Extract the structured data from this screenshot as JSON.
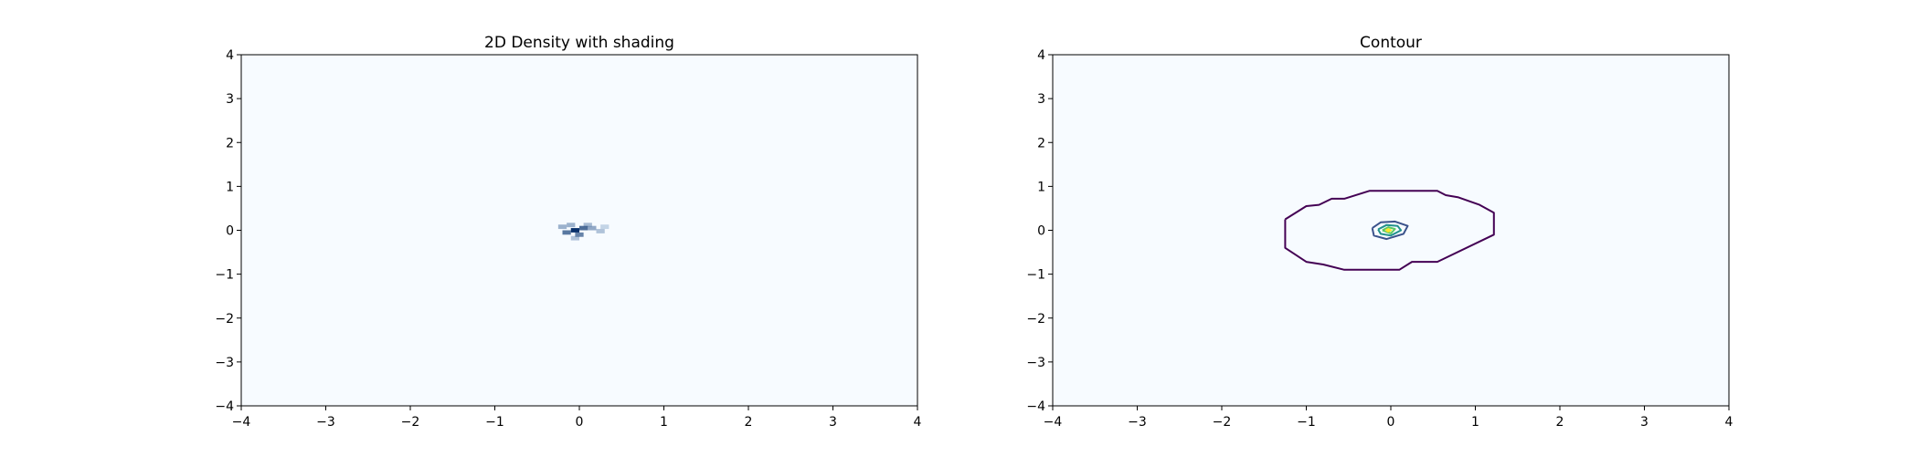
{
  "chart_data": [
    {
      "type": "heatmap",
      "title": "2D Density with shading",
      "xlabel": "",
      "ylabel": "",
      "xlim": [
        -4,
        4
      ],
      "ylim": [
        -4,
        4
      ],
      "xticks": [
        "−4",
        "−3",
        "−2",
        "−1",
        "0",
        "1",
        "2",
        "3",
        "4"
      ],
      "yticks": [
        "−4",
        "−3",
        "−2",
        "−1",
        "0",
        "1",
        "2",
        "3",
        "4"
      ],
      "grid": false,
      "colormap": "Blues",
      "background_color": "#f7fbff",
      "density_peak": {
        "x": -0.05,
        "y": 0.0
      },
      "density_cells": [
        {
          "x": -0.05,
          "y": 0.0,
          "level": 1.0
        },
        {
          "x": 0.05,
          "y": 0.05,
          "level": 0.75
        },
        {
          "x": -0.15,
          "y": -0.05,
          "level": 0.7
        },
        {
          "x": 0.0,
          "y": -0.1,
          "level": 0.65
        },
        {
          "x": 0.15,
          "y": 0.05,
          "level": 0.45
        },
        {
          "x": -0.2,
          "y": 0.08,
          "level": 0.4
        },
        {
          "x": 0.25,
          "y": -0.02,
          "level": 0.3
        },
        {
          "x": 0.1,
          "y": 0.12,
          "level": 0.35
        },
        {
          "x": -0.1,
          "y": 0.12,
          "level": 0.4
        },
        {
          "x": 0.3,
          "y": 0.08,
          "level": 0.18
        },
        {
          "x": -0.05,
          "y": -0.18,
          "level": 0.3
        }
      ]
    },
    {
      "type": "contour",
      "title": "Contour",
      "xlabel": "",
      "ylabel": "",
      "xlim": [
        -4,
        4
      ],
      "ylim": [
        -4,
        4
      ],
      "xticks": [
        "−4",
        "−3",
        "−2",
        "−1",
        "0",
        "1",
        "2",
        "3",
        "4"
      ],
      "yticks": [
        "−4",
        "−3",
        "−2",
        "−1",
        "0",
        "1",
        "2",
        "3",
        "4"
      ],
      "grid": false,
      "background_color": "#f7fbff",
      "contours": [
        {
          "level_color": "#440154",
          "points": [
            [
              -1.25,
              0.25
            ],
            [
              -1.0,
              0.55
            ],
            [
              -0.85,
              0.58
            ],
            [
              -0.7,
              0.72
            ],
            [
              -0.55,
              0.72
            ],
            [
              -0.25,
              0.9
            ],
            [
              0.55,
              0.9
            ],
            [
              0.65,
              0.8
            ],
            [
              0.8,
              0.75
            ],
            [
              1.05,
              0.58
            ],
            [
              1.22,
              0.4
            ],
            [
              1.22,
              -0.1
            ],
            [
              0.55,
              -0.72
            ],
            [
              0.25,
              -0.72
            ],
            [
              0.1,
              -0.9
            ],
            [
              -0.55,
              -0.9
            ],
            [
              -0.8,
              -0.78
            ],
            [
              -1.0,
              -0.72
            ],
            [
              -1.25,
              -0.4
            ],
            [
              -1.25,
              0.25
            ]
          ]
        },
        {
          "level_color": "#3b528b",
          "points": [
            [
              -0.22,
              0.05
            ],
            [
              -0.12,
              0.18
            ],
            [
              0.05,
              0.2
            ],
            [
              0.2,
              0.1
            ],
            [
              0.15,
              -0.08
            ],
            [
              -0.05,
              -0.2
            ],
            [
              -0.2,
              -0.12
            ],
            [
              -0.22,
              0.05
            ]
          ]
        },
        {
          "level_color": "#21918c",
          "points": [
            [
              -0.15,
              0.02
            ],
            [
              -0.05,
              0.12
            ],
            [
              0.08,
              0.1
            ],
            [
              0.12,
              0.0
            ],
            [
              0.0,
              -0.12
            ],
            [
              -0.12,
              -0.08
            ],
            [
              -0.15,
              0.02
            ]
          ]
        },
        {
          "level_color": "#5ec962",
          "points": [
            [
              -0.1,
              0.0
            ],
            [
              -0.03,
              0.07
            ],
            [
              0.05,
              0.03
            ],
            [
              0.0,
              -0.07
            ],
            [
              -0.1,
              0.0
            ]
          ]
        },
        {
          "level_color": "#fde725",
          "points": [
            [
              -0.06,
              0.0
            ],
            [
              -0.03,
              0.03
            ],
            [
              0.0,
              0.0
            ],
            [
              -0.03,
              -0.03
            ],
            [
              -0.06,
              0.0
            ]
          ]
        }
      ]
    }
  ]
}
